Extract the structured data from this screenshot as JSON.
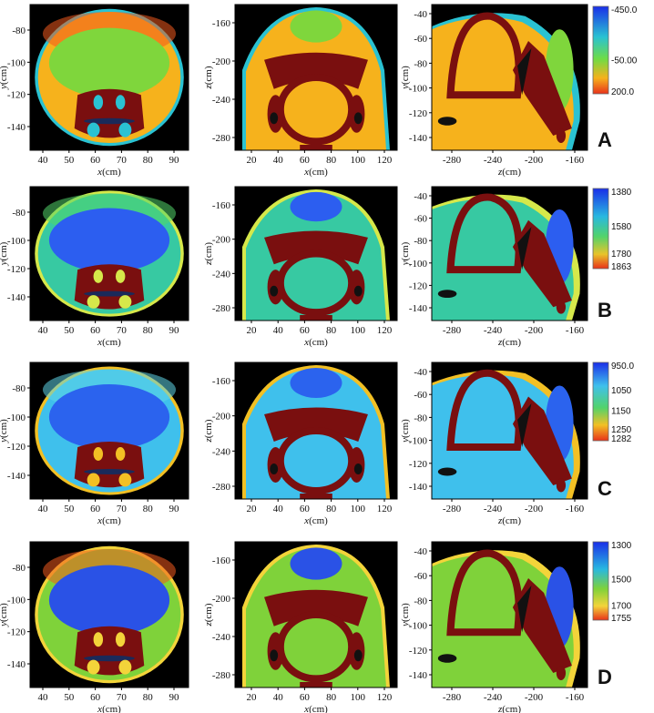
{
  "row_labels": [
    "A",
    "B",
    "C",
    "D"
  ],
  "colorbars": [
    {
      "ticks": [
        "-450.0",
        "-50.00",
        "200.0"
      ]
    },
    {
      "ticks": [
        "1380",
        "1580",
        "1780",
        "1863"
      ]
    },
    {
      "ticks": [
        "950.0",
        "1050",
        "1150",
        "1250",
        "1282"
      ]
    },
    {
      "ticks": [
        "1300",
        "1500",
        "1700",
        "1755"
      ]
    }
  ],
  "axes": {
    "axial": {
      "xlabel": "x(cm)",
      "ylabel": "y(cm)",
      "xticks": [
        "40",
        "50",
        "60",
        "70",
        "80",
        "90"
      ],
      "yticks_a": [
        "-80",
        "-100",
        "-120",
        "-140"
      ],
      "yticks": [
        "-80",
        "-100",
        "-120",
        "-140"
      ]
    },
    "coronal": {
      "xlabel": "x(cm)",
      "ylabel": "z(cm)",
      "xticks": [
        "20",
        "40",
        "60",
        "80",
        "100",
        "120"
      ],
      "yticks": [
        "-160",
        "-200",
        "-240",
        "-280"
      ]
    },
    "sagittal": {
      "xlabel": "z(cm)",
      "ylabel": "y(cm)",
      "xticks": [
        "-280",
        "-240",
        "-200",
        "-160"
      ],
      "yticks": [
        "-40",
        "-60",
        "-80",
        "-100",
        "-120",
        "-140"
      ]
    }
  },
  "colors": {
    "A": {
      "bg": "#f6b21c",
      "core": "#7fd63c",
      "hi": "#f05a1e",
      "bone": "#7a0f0f",
      "skin": "#2ac2d2"
    },
    "B": {
      "bg": "#37c9a2",
      "core": "#2c5ef0",
      "hi": "#52d36a",
      "bone": "#7a0f0f",
      "skin": "#d6e84a"
    },
    "C": {
      "bg": "#3fc0ec",
      "core": "#2b63ee",
      "hi": "#5fd4e6",
      "bone": "#7a0f0f",
      "skin": "#f2c024"
    },
    "D": {
      "bg": "#7fd23a",
      "core": "#2a52e6",
      "hi": "#f05a1e",
      "bone": "#7a0f0f",
      "skin": "#f3d43a"
    }
  }
}
